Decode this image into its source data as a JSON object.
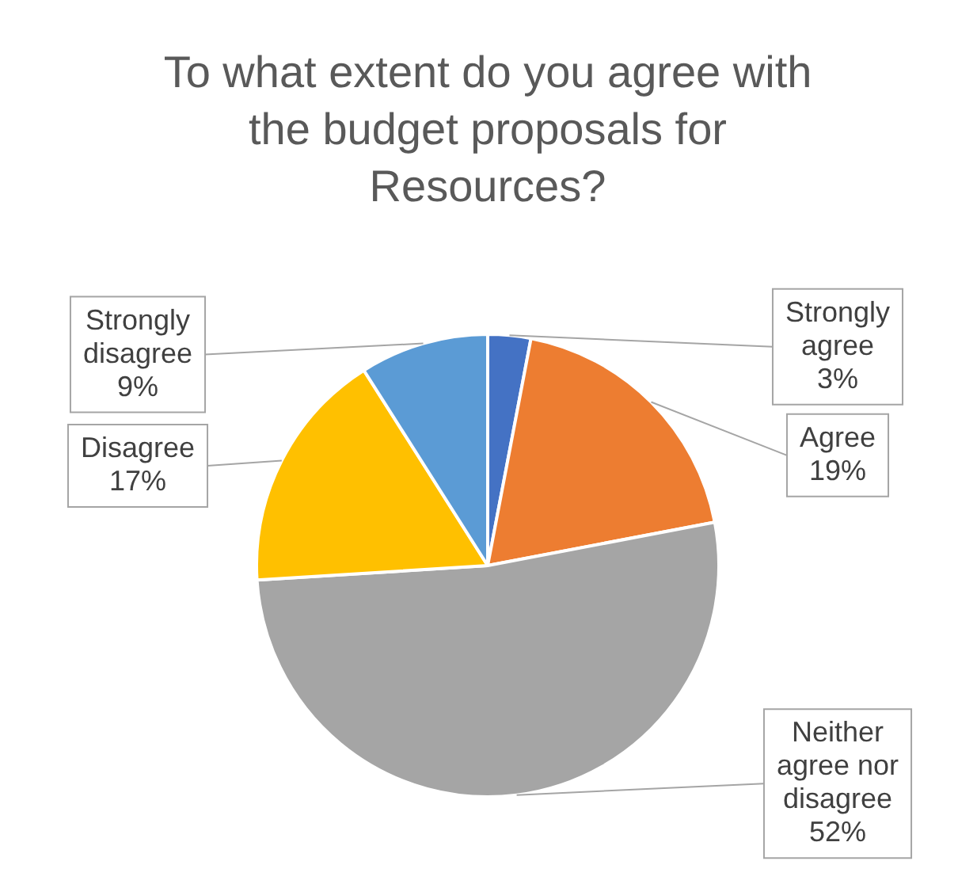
{
  "chart_data": {
    "type": "pie",
    "title": "To what extent do you agree with the budget proposals for Resources?",
    "categories": [
      "Strongly agree",
      "Agree",
      "Neither agree nor disagree",
      "Disagree",
      "Strongly disagree"
    ],
    "values": [
      3,
      19,
      52,
      17,
      9
    ],
    "colors": [
      "#4472c4",
      "#ed7d31",
      "#a5a5a5",
      "#ffc000",
      "#5b9bd5"
    ],
    "value_labels": [
      "3%",
      "19%",
      "52%",
      "17%",
      "9%"
    ]
  }
}
